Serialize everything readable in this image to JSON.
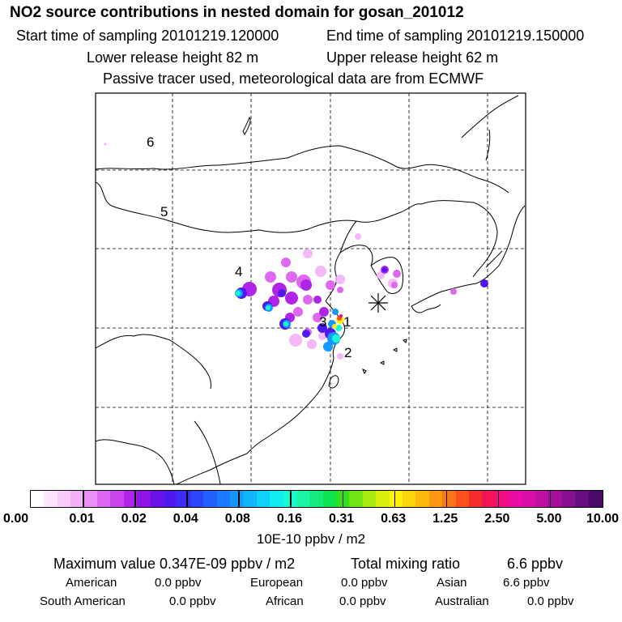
{
  "header": {
    "title": "NO2 source contributions in nested domain for gosan_201012",
    "start_time": "Start time of sampling 20101219.120000",
    "end_time": "End time of sampling 20101219.150000",
    "lower_release": "Lower release height   82 m",
    "upper_release": "Upper release height   62 m",
    "tracer_note": "Passive tracer used, meteorological data are from ECMWF"
  },
  "map": {
    "region_labels": [
      "1",
      "2",
      "3",
      "4",
      "5",
      "6"
    ],
    "receptor_marker": "asterisk"
  },
  "colorbar": {
    "unit": "10E-10 ppbv / m2",
    "tick_labels": [
      "0.00",
      "0.01",
      "0.02",
      "0.04",
      "0.08",
      "0.16",
      "0.31",
      "0.63",
      "1.25",
      "2.50",
      "5.00",
      "10.00"
    ],
    "colors": [
      "#ffffff",
      "#fde6fd",
      "#f9ccfb",
      "#f3b0f7",
      "#eb8ef5",
      "#df68f1",
      "#cc44ee",
      "#b024ea",
      "#8e14e6",
      "#6a10e8",
      "#4e18ee",
      "#3c2cf4",
      "#2e44fa",
      "#2460fc",
      "#1a7cfc",
      "#1498fc",
      "#10b6fa",
      "#10d2f8",
      "#10ecf2",
      "#18fad2",
      "#1cf4a6",
      "#14ec7c",
      "#10e24e",
      "#34e01c",
      "#70e414",
      "#a8ea10",
      "#d8f00c",
      "#faf00a",
      "#fcd40c",
      "#fcb80e",
      "#fc9812",
      "#fc7418",
      "#fa501c",
      "#f42c30",
      "#f21456",
      "#f20c84",
      "#ea0aa6",
      "#d80ea8",
      "#c010a4",
      "#a4109c",
      "#861090",
      "#680e80",
      "#4a0a6a"
    ]
  },
  "stats": {
    "maximum": "Maximum value  0.347E-09 ppbv / m2",
    "total_label": "Total mixing ratio",
    "total_value": "6.6 ppbv"
  },
  "regions": [
    {
      "name": "American",
      "value": "0.0 ppbv"
    },
    {
      "name": "European",
      "value": "0.0 ppbv"
    },
    {
      "name": "Asian",
      "value": "6.6 ppbv"
    },
    {
      "name": "South American",
      "value": "0.0 ppbv"
    },
    {
      "name": "African",
      "value": "0.0 ppbv"
    },
    {
      "name": "Australian",
      "value": "0.0 ppbv"
    }
  ]
}
